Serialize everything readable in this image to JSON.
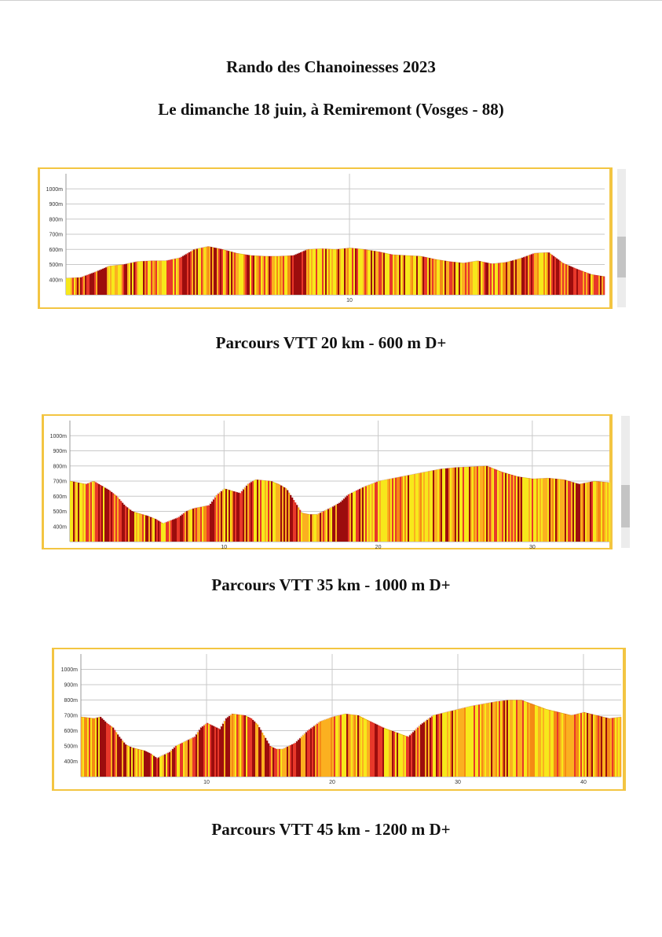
{
  "header": {
    "title": "Rando des Chanoinesses 2023",
    "subtitle": "Le dimanche 18 juin, à Remiremont (Vosges - 88)"
  },
  "colors": {
    "border": "#f3c542",
    "low": "#f7e81b",
    "mid": "#fbb020",
    "high": "#f58a15",
    "steep": "#e8382a",
    "veryhigh": "#9c0d0d",
    "grid": "#c9c9c9"
  },
  "chart_data": [
    {
      "type": "area",
      "caption": "Parcours VTT 20 km - 600 m D+",
      "xlabel": "",
      "ylabel": "",
      "xlim": [
        0,
        19
      ],
      "ylim": [
        300,
        1100
      ],
      "yticks": [
        "400m",
        "500m",
        "600m",
        "700m",
        "800m",
        "900m",
        "1000m"
      ],
      "xticks": [
        10
      ],
      "x": [
        0,
        0.5,
        1,
        1.5,
        2,
        2.5,
        3,
        3.5,
        4,
        4.5,
        5,
        5.5,
        6,
        6.5,
        7,
        7.5,
        8,
        8.5,
        9,
        9.5,
        10,
        10.5,
        11,
        11.5,
        12,
        12.5,
        13,
        13.5,
        14,
        14.5,
        15,
        15.5,
        16,
        16.5,
        17,
        17.5,
        18,
        18.5,
        19
      ],
      "y": [
        410,
        415,
        450,
        490,
        500,
        520,
        525,
        525,
        545,
        600,
        620,
        600,
        575,
        560,
        555,
        555,
        560,
        600,
        605,
        600,
        610,
        600,
        585,
        565,
        560,
        555,
        535,
        520,
        510,
        525,
        505,
        515,
        540,
        575,
        580,
        510,
        470,
        435,
        420
      ]
    },
    {
      "type": "area",
      "caption": "Parcours VTT 35 km - 1000 m D+",
      "xlabel": "",
      "ylabel": "",
      "xlim": [
        0,
        35
      ],
      "ylim": [
        300,
        1100
      ],
      "yticks": [
        "400m",
        "500m",
        "600m",
        "700m",
        "800m",
        "900m",
        "1000m"
      ],
      "xticks": [
        10,
        20,
        30
      ],
      "x": [
        0,
        1,
        1.5,
        2,
        2.5,
        3,
        3.5,
        4,
        5,
        5.5,
        6,
        7,
        7.5,
        8,
        9,
        9.5,
        10,
        11,
        11.5,
        12,
        13,
        13.5,
        14,
        15,
        15.5,
        16,
        17,
        17.5,
        18,
        19,
        20,
        21,
        22,
        23,
        24,
        25,
        26,
        27,
        28,
        29,
        30,
        31,
        32,
        33,
        34,
        35
      ],
      "y": [
        700,
        680,
        700,
        670,
        640,
        600,
        540,
        500,
        470,
        450,
        420,
        460,
        500,
        520,
        540,
        610,
        650,
        620,
        680,
        710,
        700,
        680,
        650,
        490,
        480,
        480,
        530,
        560,
        610,
        660,
        700,
        720,
        740,
        760,
        780,
        790,
        795,
        800,
        760,
        730,
        715,
        720,
        710,
        680,
        700,
        690
      ]
    },
    {
      "type": "area",
      "caption": "Parcours VTT 45 km - 1200 m D+",
      "xlabel": "",
      "ylabel": "",
      "xlim": [
        0,
        43
      ],
      "ylim": [
        300,
        1100
      ],
      "yticks": [
        "400m",
        "500m",
        "600m",
        "700m",
        "800m",
        "900m",
        "1000m"
      ],
      "xticks": [
        10,
        20,
        30,
        40
      ],
      "x": [
        0,
        1,
        1.5,
        2,
        2.5,
        3,
        3.5,
        4,
        5,
        5.5,
        6,
        7,
        7.5,
        8,
        9,
        9.5,
        10,
        11,
        11.5,
        12,
        13,
        13.5,
        14,
        15,
        15.5,
        16,
        17,
        18,
        19,
        20,
        21,
        22,
        23,
        24,
        25,
        26,
        27,
        28,
        29,
        30,
        31,
        32,
        33,
        34,
        35,
        36,
        37,
        38,
        39,
        40,
        41,
        42,
        43
      ],
      "y": [
        690,
        680,
        690,
        650,
        620,
        560,
        510,
        490,
        470,
        450,
        420,
        460,
        500,
        520,
        560,
        620,
        650,
        610,
        680,
        710,
        700,
        680,
        640,
        500,
        480,
        480,
        520,
        600,
        660,
        690,
        710,
        700,
        660,
        620,
        590,
        560,
        640,
        700,
        720,
        740,
        760,
        775,
        790,
        800,
        800,
        770,
        740,
        720,
        700,
        720,
        700,
        680,
        690
      ]
    }
  ]
}
